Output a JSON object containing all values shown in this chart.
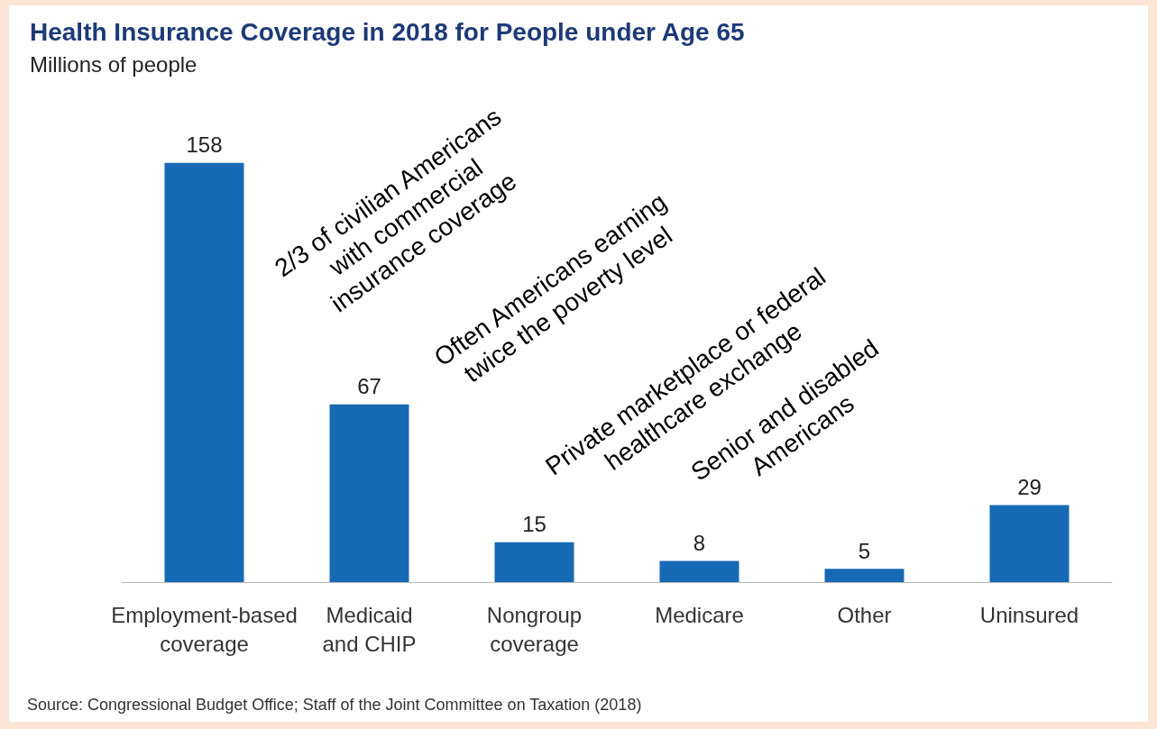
{
  "chart_data": {
    "type": "bar",
    "title": "Health Insurance Coverage in 2018 for People under Age 65",
    "subtitle": "Millions of people",
    "categories": [
      "Employment-based\ncoverage",
      "Medicaid\nand CHIP",
      "Nongroup\ncoverage",
      "Medicare",
      "Other",
      "Uninsured"
    ],
    "values": [
      158,
      67,
      15,
      8,
      5,
      29
    ],
    "color": "#1769b3",
    "data_labels": true,
    "annotations": [
      "2/3 of civilian Americans\nwith commercial\ninsurance coverage",
      "Often Americans earning\ntwice the poverty level",
      "Private marketplace or federal\nhealthcare exchange",
      "Senior and disabled\nAmericans",
      "Source: Congressional Budget Office; Staff of the Joint Committee on Taxation (2018)"
    ]
  }
}
